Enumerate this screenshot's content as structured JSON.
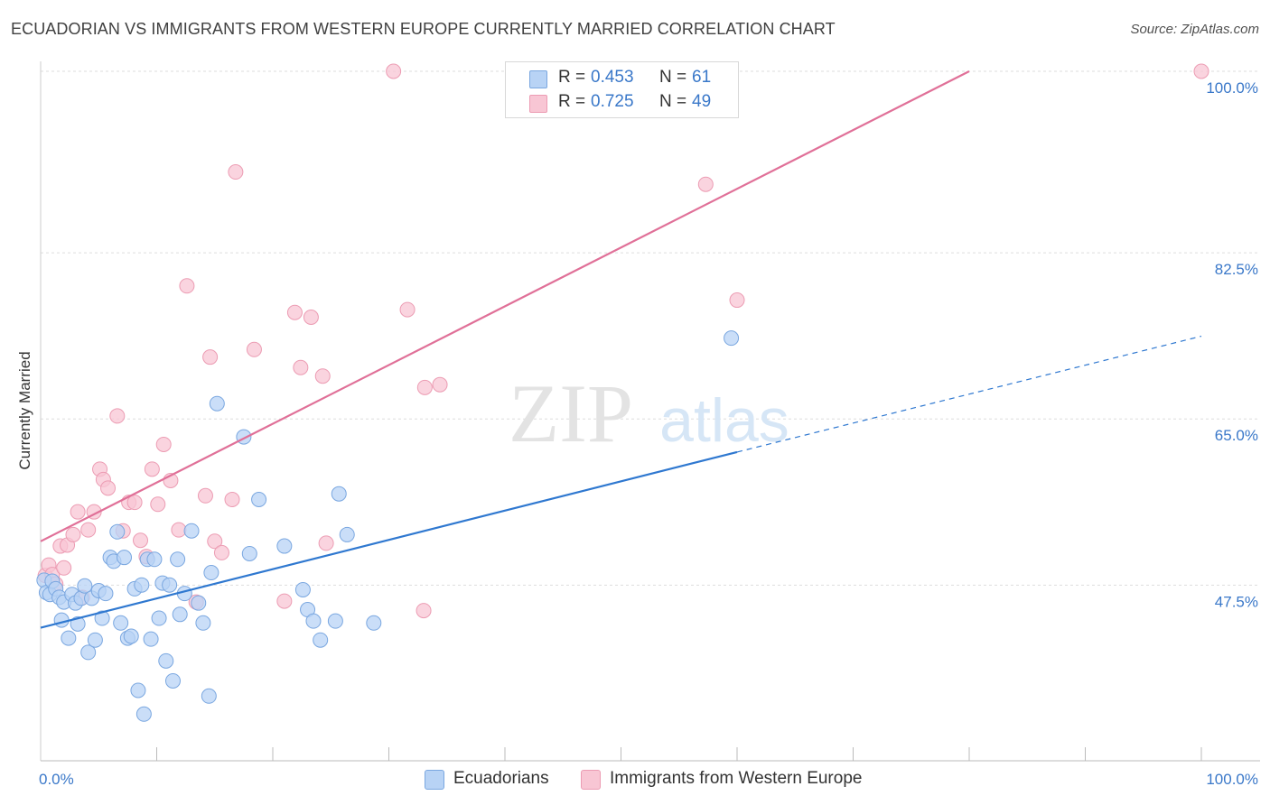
{
  "title": "ECUADORIAN VS IMMIGRANTS FROM WESTERN EUROPE CURRENTLY MARRIED CORRELATION CHART",
  "source": "Source: ZipAtlas.com",
  "watermark": {
    "zip": "ZIP",
    "atlas": "atlas"
  },
  "colors": {
    "blue_fill": "#b8d3f5",
    "blue_stroke": "#7aa7e0",
    "blue_line": "#2f78d0",
    "pink_fill": "#f8c6d4",
    "pink_stroke": "#ec9cb3",
    "pink_line": "#e07098",
    "tick_text": "#3a78c9",
    "grid": "#dddddd"
  },
  "legend": {
    "rows": [
      {
        "r_label": "R =",
        "r_value": "0.453",
        "n_label": "N =",
        "n_value": "61"
      },
      {
        "r_label": "R =",
        "r_value": "0.725",
        "n_label": "N =",
        "n_value": "49"
      }
    ]
  },
  "bottom_legend": {
    "series_a": "Ecuadorians",
    "series_b": "Immigrants from Western Europe"
  },
  "chart_data": {
    "type": "scatter",
    "title": "ECUADORIAN VS IMMIGRANTS FROM WESTERN EUROPE CURRENTLY MARRIED CORRELATION CHART",
    "ylabel": "Currently Married",
    "xlabel": "",
    "xlim": [
      0,
      100
    ],
    "ylim": [
      29.0,
      101.5
    ],
    "x_tick_labels": [
      "0.0%",
      "100.0%"
    ],
    "y_ticks": [
      47.5,
      65.0,
      82.5,
      100.0
    ],
    "y_tick_labels": [
      "47.5%",
      "65.0%",
      "82.5%",
      "100.0%"
    ],
    "grid": true,
    "legend_position": "top-center",
    "series": [
      {
        "name": "Ecuadorians",
        "r": 0.453,
        "n": 61,
        "trend": {
          "x0": 0,
          "y0": 41.4,
          "x1": 60,
          "y1": 59.9,
          "dashed_to_x": 100,
          "dashed_to_y": 72.1
        },
        "points": [
          [
            0.3,
            46.4
          ],
          [
            0.5,
            45.1
          ],
          [
            0.8,
            44.9
          ],
          [
            1.0,
            46.3
          ],
          [
            1.3,
            45.5
          ],
          [
            1.6,
            44.6
          ],
          [
            1.8,
            42.2
          ],
          [
            2.0,
            44.1
          ],
          [
            2.4,
            40.3
          ],
          [
            2.7,
            44.9
          ],
          [
            3.0,
            44.0
          ],
          [
            3.2,
            41.8
          ],
          [
            3.5,
            44.5
          ],
          [
            3.8,
            45.8
          ],
          [
            4.1,
            38.8
          ],
          [
            4.4,
            44.5
          ],
          [
            4.7,
            40.1
          ],
          [
            5.0,
            45.3
          ],
          [
            5.3,
            42.4
          ],
          [
            5.6,
            45.0
          ],
          [
            6.0,
            48.8
          ],
          [
            6.3,
            48.4
          ],
          [
            6.6,
            51.5
          ],
          [
            6.9,
            41.9
          ],
          [
            7.2,
            48.8
          ],
          [
            7.5,
            40.3
          ],
          [
            7.8,
            40.5
          ],
          [
            8.1,
            45.5
          ],
          [
            8.4,
            34.8
          ],
          [
            8.7,
            45.9
          ],
          [
            8.9,
            32.3
          ],
          [
            9.2,
            48.6
          ],
          [
            9.5,
            40.2
          ],
          [
            9.8,
            48.6
          ],
          [
            10.2,
            42.4
          ],
          [
            10.5,
            46.1
          ],
          [
            10.8,
            37.9
          ],
          [
            11.1,
            45.9
          ],
          [
            11.4,
            35.8
          ],
          [
            11.8,
            48.6
          ],
          [
            12.0,
            42.8
          ],
          [
            12.4,
            45.0
          ],
          [
            13.0,
            51.6
          ],
          [
            13.6,
            44.0
          ],
          [
            14.0,
            41.9
          ],
          [
            14.5,
            34.2
          ],
          [
            14.7,
            47.2
          ],
          [
            15.2,
            65.0
          ],
          [
            17.5,
            61.5
          ],
          [
            18.0,
            49.2
          ],
          [
            18.8,
            54.9
          ],
          [
            21.0,
            50.0
          ],
          [
            22.6,
            45.4
          ],
          [
            23.0,
            43.3
          ],
          [
            23.5,
            42.1
          ],
          [
            24.1,
            40.1
          ],
          [
            25.4,
            42.1
          ],
          [
            25.7,
            55.5
          ],
          [
            26.4,
            51.2
          ],
          [
            28.7,
            41.9
          ],
          [
            59.5,
            71.9
          ]
        ]
      },
      {
        "name": "Immigrants from Western Europe",
        "r": 0.725,
        "n": 49,
        "trend": {
          "x0": 0,
          "y0": 50.5,
          "x1": 80,
          "y1": 100.0
        },
        "points": [
          [
            0.4,
            46.9
          ],
          [
            0.7,
            48.0
          ],
          [
            1.0,
            47.0
          ],
          [
            1.3,
            46.0
          ],
          [
            1.7,
            50.0
          ],
          [
            2.0,
            47.7
          ],
          [
            2.3,
            50.1
          ],
          [
            2.8,
            51.2
          ],
          [
            3.2,
            53.6
          ],
          [
            3.6,
            44.6
          ],
          [
            4.1,
            51.7
          ],
          [
            4.6,
            53.6
          ],
          [
            5.1,
            58.1
          ],
          [
            5.4,
            57.0
          ],
          [
            5.8,
            56.1
          ],
          [
            6.6,
            63.7
          ],
          [
            7.1,
            51.6
          ],
          [
            7.6,
            54.6
          ],
          [
            8.1,
            54.6
          ],
          [
            8.6,
            50.6
          ],
          [
            9.1,
            48.9
          ],
          [
            9.6,
            58.1
          ],
          [
            10.1,
            54.4
          ],
          [
            10.6,
            60.7
          ],
          [
            11.2,
            56.9
          ],
          [
            11.9,
            51.7
          ],
          [
            12.6,
            77.4
          ],
          [
            13.4,
            44.1
          ],
          [
            14.2,
            55.3
          ],
          [
            14.6,
            69.9
          ],
          [
            15.0,
            50.5
          ],
          [
            15.6,
            49.3
          ],
          [
            16.5,
            54.9
          ],
          [
            16.8,
            89.4
          ],
          [
            18.4,
            70.7
          ],
          [
            21.0,
            44.2
          ],
          [
            21.9,
            74.6
          ],
          [
            22.4,
            68.8
          ],
          [
            23.3,
            74.1
          ],
          [
            24.3,
            67.9
          ],
          [
            24.6,
            50.3
          ],
          [
            30.4,
            100.0
          ],
          [
            31.6,
            74.9
          ],
          [
            33.0,
            43.2
          ],
          [
            33.1,
            66.7
          ],
          [
            34.4,
            67.0
          ],
          [
            57.3,
            88.1
          ],
          [
            60.0,
            75.9
          ],
          [
            100.0,
            100.0
          ]
        ]
      }
    ]
  }
}
